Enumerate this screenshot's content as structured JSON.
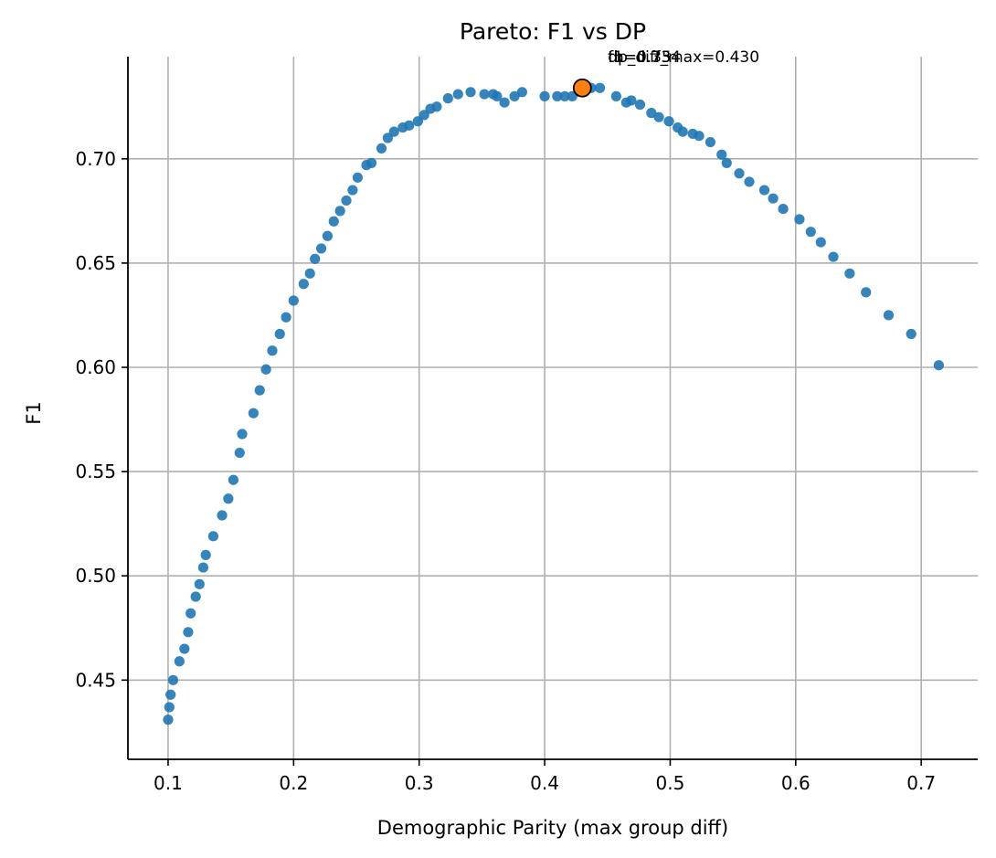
{
  "chart_data": {
    "type": "scatter",
    "title": "Pareto: F1 vs DP",
    "xlabel": "Demographic Parity (max group diff)",
    "ylabel": "F1",
    "xlim": [
      0.068,
      0.745
    ],
    "ylim": [
      0.412,
      0.749
    ],
    "xticks": [
      0.1,
      0.2,
      0.3,
      0.4,
      0.5,
      0.6,
      0.7
    ],
    "yticks": [
      0.45,
      0.5,
      0.55,
      0.6,
      0.65,
      0.7
    ],
    "xtick_labels": [
      "0.1",
      "0.2",
      "0.3",
      "0.4",
      "0.5",
      "0.6",
      "0.7"
    ],
    "ytick_labels": [
      "0.45",
      "0.50",
      "0.55",
      "0.60",
      "0.65",
      "0.70"
    ],
    "grid": true,
    "colors": {
      "points": "#1f77b4",
      "highlight": "#ff7f0e",
      "highlight_edge": "#000000",
      "grid": "#b0b0b0"
    },
    "series": [
      {
        "points": [
          [
            0.1,
            0.431
          ],
          [
            0.101,
            0.437
          ],
          [
            0.102,
            0.443
          ],
          [
            0.104,
            0.45
          ],
          [
            0.109,
            0.459
          ],
          [
            0.113,
            0.465
          ],
          [
            0.116,
            0.473
          ],
          [
            0.118,
            0.482
          ],
          [
            0.122,
            0.49
          ],
          [
            0.125,
            0.496
          ],
          [
            0.128,
            0.504
          ],
          [
            0.13,
            0.51
          ],
          [
            0.136,
            0.519
          ],
          [
            0.143,
            0.529
          ],
          [
            0.148,
            0.537
          ],
          [
            0.152,
            0.546
          ],
          [
            0.157,
            0.559
          ],
          [
            0.159,
            0.568
          ],
          [
            0.168,
            0.578
          ],
          [
            0.173,
            0.589
          ],
          [
            0.178,
            0.599
          ],
          [
            0.183,
            0.608
          ],
          [
            0.189,
            0.616
          ],
          [
            0.194,
            0.624
          ],
          [
            0.2,
            0.632
          ],
          [
            0.208,
            0.64
          ],
          [
            0.213,
            0.645
          ],
          [
            0.217,
            0.652
          ],
          [
            0.222,
            0.657
          ],
          [
            0.227,
            0.663
          ],
          [
            0.232,
            0.67
          ],
          [
            0.237,
            0.675
          ],
          [
            0.242,
            0.68
          ],
          [
            0.247,
            0.685
          ],
          [
            0.251,
            0.691
          ],
          [
            0.258,
            0.697
          ],
          [
            0.262,
            0.698
          ],
          [
            0.27,
            0.705
          ],
          [
            0.275,
            0.71
          ],
          [
            0.28,
            0.713
          ],
          [
            0.287,
            0.715
          ],
          [
            0.292,
            0.716
          ],
          [
            0.299,
            0.718
          ],
          [
            0.304,
            0.721
          ],
          [
            0.309,
            0.724
          ],
          [
            0.314,
            0.725
          ],
          [
            0.323,
            0.729
          ],
          [
            0.331,
            0.731
          ],
          [
            0.341,
            0.732
          ],
          [
            0.352,
            0.731
          ],
          [
            0.359,
            0.731
          ],
          [
            0.362,
            0.73
          ],
          [
            0.368,
            0.727
          ],
          [
            0.376,
            0.73
          ],
          [
            0.382,
            0.732
          ],
          [
            0.4,
            0.73
          ],
          [
            0.41,
            0.73
          ],
          [
            0.416,
            0.73
          ],
          [
            0.422,
            0.73
          ],
          [
            0.437,
            0.734
          ],
          [
            0.444,
            0.734
          ],
          [
            0.457,
            0.73
          ],
          [
            0.465,
            0.727
          ],
          [
            0.469,
            0.728
          ],
          [
            0.476,
            0.726
          ],
          [
            0.485,
            0.722
          ],
          [
            0.491,
            0.72
          ],
          [
            0.499,
            0.718
          ],
          [
            0.506,
            0.715
          ],
          [
            0.51,
            0.713
          ],
          [
            0.518,
            0.712
          ],
          [
            0.523,
            0.711
          ],
          [
            0.532,
            0.708
          ],
          [
            0.541,
            0.702
          ],
          [
            0.545,
            0.698
          ],
          [
            0.555,
            0.693
          ],
          [
            0.563,
            0.689
          ],
          [
            0.575,
            0.685
          ],
          [
            0.582,
            0.681
          ],
          [
            0.59,
            0.676
          ],
          [
            0.603,
            0.671
          ],
          [
            0.612,
            0.665
          ],
          [
            0.62,
            0.66
          ],
          [
            0.63,
            0.653
          ],
          [
            0.643,
            0.645
          ],
          [
            0.656,
            0.636
          ],
          [
            0.674,
            0.625
          ],
          [
            0.692,
            0.616
          ],
          [
            0.714,
            0.601
          ]
        ]
      }
    ],
    "highlight": {
      "x": 0.43,
      "y": 0.734,
      "annotations": [
        "dp_diff_max=0.430",
        "f1=0.734",
        "th=0.35"
      ]
    }
  }
}
